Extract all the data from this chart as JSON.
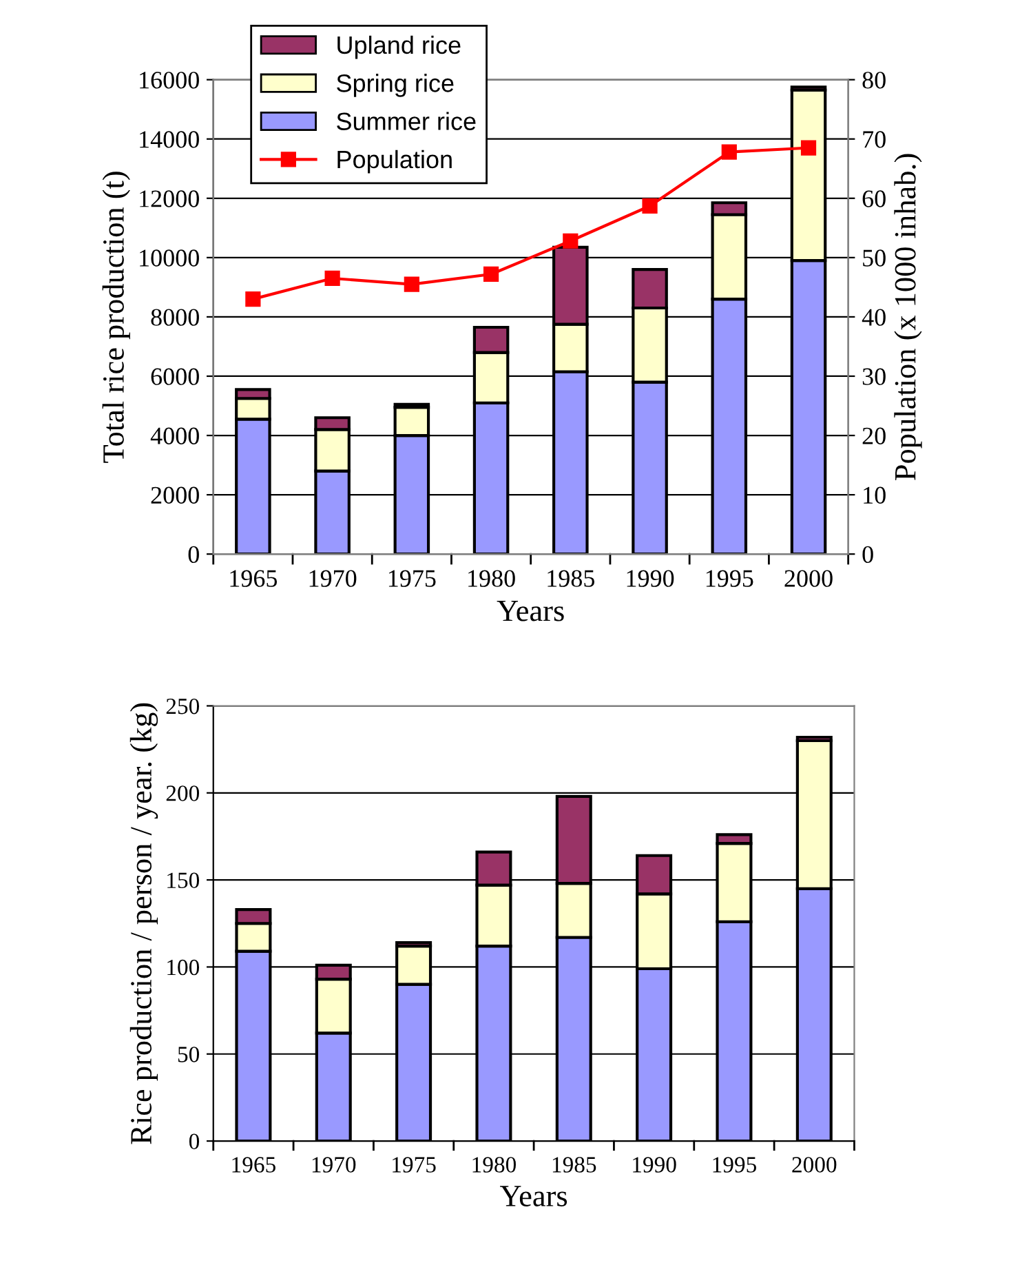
{
  "chart_data": [
    {
      "type": "bar",
      "stacked": true,
      "categories": [
        "1965",
        "1970",
        "1975",
        "1980",
        "1985",
        "1990",
        "1995",
        "2000"
      ],
      "xlabel": "Years",
      "ylabel": "Total rice production (t)",
      "y2label": "Population (x 1000 inhab.)",
      "ylim": [
        0,
        16000
      ],
      "yticks": [
        0,
        2000,
        4000,
        6000,
        8000,
        10000,
        12000,
        14000,
        16000
      ],
      "y2lim": [
        0,
        80
      ],
      "y2ticks": [
        0,
        10,
        20,
        30,
        40,
        50,
        60,
        70,
        80
      ],
      "grid": "y",
      "legend": "top left",
      "series": [
        {
          "name": "Summer rice",
          "color": "#9999ff",
          "values": [
            4550,
            2800,
            4000,
            5100,
            6150,
            5800,
            8600,
            9900
          ]
        },
        {
          "name": "Spring rice",
          "color": "#ffffcc",
          "values": [
            700,
            1400,
            950,
            1700,
            1600,
            2500,
            2850,
            5750
          ]
        },
        {
          "name": "Upland rice",
          "color": "#993366",
          "values": [
            300,
            400,
            100,
            850,
            2600,
            1300,
            400,
            100
          ]
        },
        {
          "name": "Population",
          "type": "line",
          "axis": "y2",
          "color": "#ff0000",
          "marker": "square",
          "values": [
            43,
            46.5,
            45.5,
            47.2,
            52.8,
            58.7,
            67.8,
            68.5
          ]
        }
      ]
    },
    {
      "type": "bar",
      "stacked": true,
      "categories": [
        "1965",
        "1970",
        "1975",
        "1980",
        "1985",
        "1990",
        "1995",
        "2000"
      ],
      "xlabel": "Years",
      "ylabel": "Rice production / person / year. (kg)",
      "ylim": [
        0,
        250
      ],
      "yticks": [
        0,
        50,
        100,
        150,
        200,
        250
      ],
      "grid": "y",
      "series": [
        {
          "color": "#9999ff",
          "values": [
            109,
            62,
            90,
            112,
            117,
            99,
            126,
            145
          ]
        },
        {
          "color": "#ffffcc",
          "values": [
            16,
            31,
            22,
            35,
            31,
            43,
            45,
            85
          ]
        },
        {
          "color": "#993366",
          "values": [
            8,
            8,
            2,
            19,
            50,
            22,
            5,
            2
          ]
        }
      ]
    }
  ]
}
